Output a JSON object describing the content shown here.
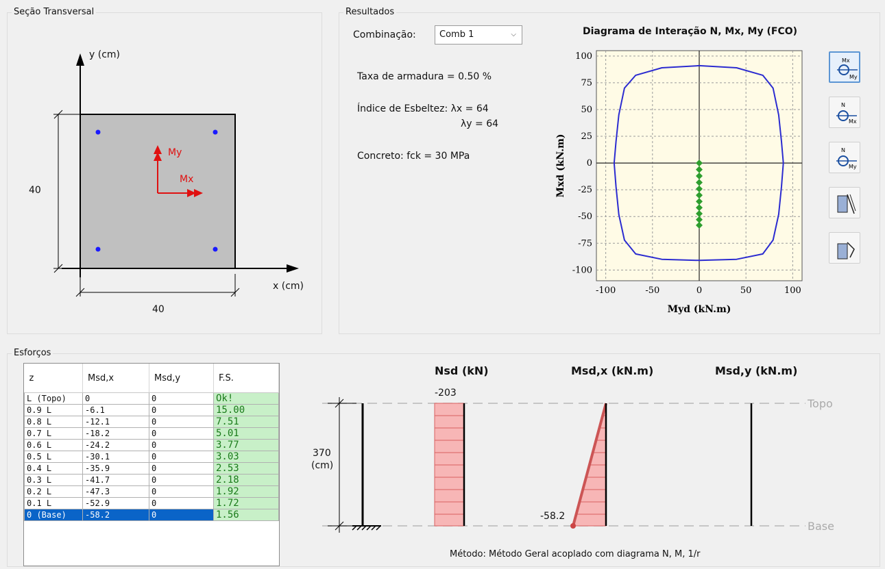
{
  "section": {
    "title": "Seção Transversal",
    "y_axis_label": "y (cm)",
    "x_axis_label": "x (cm)",
    "height_dim": "40",
    "width_dim": "40",
    "moment_y_label": "My",
    "moment_x_label": "Mx"
  },
  "results": {
    "title": "Resultados",
    "combination_label": "Combinação:",
    "combination_value": "Comb 1",
    "rebar_ratio": "Taxa de armadura = 0.50 %",
    "slenderness_label": "Índice de Esbeltez: λx = 64",
    "slenderness_y": "λy = 64",
    "concrete": "Concreto: fck = 30 MPa"
  },
  "chart_data": {
    "type": "line",
    "title": "Diagrama de Interação N, Mx, My (FCO)",
    "xlabel": "Myd  (kN.m)",
    "ylabel": "Mxd  (kN.m)",
    "xlim": [
      -110,
      110
    ],
    "ylim": [
      -110,
      105
    ],
    "x_ticks": [
      -100,
      -50,
      0,
      50,
      100
    ],
    "y_ticks": [
      100,
      75,
      50,
      25,
      0,
      -25,
      -50,
      -75,
      -100
    ],
    "grid": true,
    "series": [
      {
        "color": "#2b2bd0",
        "kind": "closed-curve",
        "x": [
          0,
          40,
          68,
          79,
          85,
          88,
          90,
          88,
          85,
          79,
          68,
          40,
          0,
          -40,
          -68,
          -80,
          -86,
          -89,
          -91,
          -89,
          -86,
          -80,
          -68,
          -40,
          0
        ],
        "y": [
          91,
          89,
          82,
          70,
          45,
          20,
          0,
          -22,
          -48,
          -72,
          -85,
          -90,
          -91,
          -90,
          -85,
          -72,
          -48,
          -22,
          0,
          20,
          45,
          70,
          82,
          89,
          91
        ]
      },
      {
        "color": "#2e9e2e",
        "kind": "points",
        "x": [
          0,
          0,
          0,
          0,
          0,
          0,
          0,
          0,
          0,
          0,
          0
        ],
        "y": [
          0,
          -6.1,
          -12.1,
          -18.2,
          -24.2,
          -30.1,
          -35.9,
          -41.7,
          -47.3,
          -52.9,
          -58.2
        ]
      }
    ]
  },
  "side_buttons": [
    {
      "icon": "mx-my-interaction-icon",
      "top": "Mx",
      "bottom": "My",
      "active": true
    },
    {
      "icon": "n-mx-interaction-icon",
      "top": "N",
      "bottom": "Mx",
      "active": false
    },
    {
      "icon": "n-my-interaction-icon",
      "top": "N",
      "bottom": "My",
      "active": false
    },
    {
      "icon": "column-section-icon-1",
      "active": false
    },
    {
      "icon": "column-section-icon-2",
      "active": false
    }
  ],
  "efforts": {
    "title": "Esforços",
    "columns": [
      "z",
      "Msd,x",
      "Msd,y",
      "F.S."
    ],
    "rows": [
      [
        "L (Topo)",
        "0",
        "0",
        "Ok!"
      ],
      [
        "0.9 L",
        "-6.1",
        "0",
        "15.00"
      ],
      [
        "0.8 L",
        "-12.1",
        "0",
        "7.51"
      ],
      [
        "0.7 L",
        "-18.2",
        "0",
        "5.01"
      ],
      [
        "0.6 L",
        "-24.2",
        "0",
        "3.77"
      ],
      [
        "0.5 L",
        "-30.1",
        "0",
        "3.03"
      ],
      [
        "0.4 L",
        "-35.9",
        "0",
        "2.53"
      ],
      [
        "0.3 L",
        "-41.7",
        "0",
        "2.18"
      ],
      [
        "0.2 L",
        "-47.3",
        "0",
        "1.92"
      ],
      [
        "0.1 L",
        "-52.9",
        "0",
        "1.72"
      ],
      [
        "0 (Base)",
        "-58.2",
        "0",
        "1.56"
      ]
    ],
    "selected_row": 10
  },
  "diagram": {
    "nsd_label": "Nsd (kN)",
    "msdx_label": "Msd,x (kN.m)",
    "msdy_label": "Msd,y (kN.m)",
    "nsd_value": "-203",
    "msdx_base_value": "-58.2",
    "height_value": "370",
    "height_unit": "(cm)",
    "top_label": "Topo",
    "base_label": "Base",
    "method": "Método: Método Geral acoplado com diagrama N, M, 1/r"
  }
}
